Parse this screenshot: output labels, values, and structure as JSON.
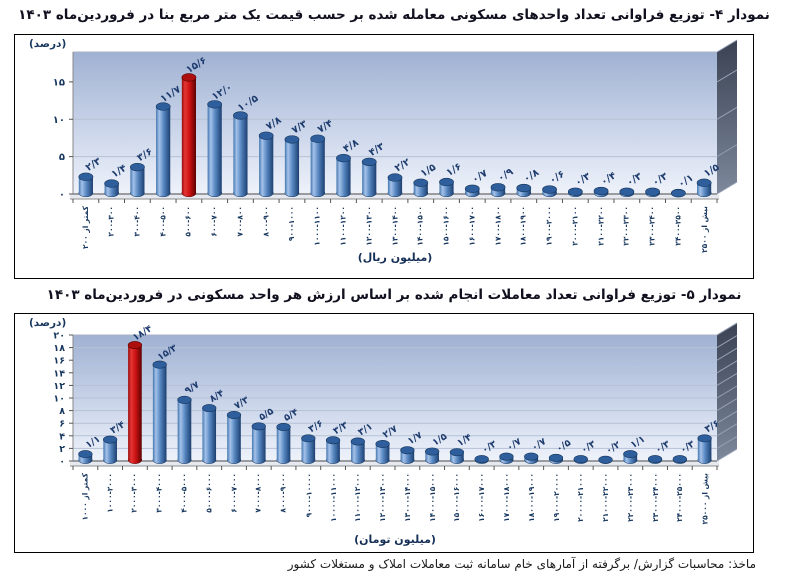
{
  "footer": {
    "source": "ماخذ: محاسبات گزارش/ برگرفته از آمارهای خام سامانه ثبت معاملات املاک و مستغلات کشور"
  },
  "colors": {
    "bar_blue": "#4f81bd",
    "bar_blue_top": "#2e5f9c",
    "highlight_red": "#c00000",
    "highlight_red_top": "#ad0f0f",
    "label_navy": "#17375e",
    "plot_bg_top": "#9fb1d2",
    "plot_bg_bottom": "#eef2fa",
    "side_wall": "#3a4252",
    "gridline": "#b6c1d6"
  },
  "chart_data": [
    {
      "type": "bar",
      "title": "نمودار ۴- توزیع فراوانی تعداد واحدهای مسکونی معامله شده بر حسب قیمت یک متر مربع بنا در فروردین‌ماه ۱۴۰۳",
      "ylabel": "(درصد)",
      "xlabel": "(میلیون ریال)",
      "ylim": [
        0,
        19
      ],
      "grid": true,
      "legend": false,
      "highlight_index": 4,
      "categories": [
        "کمتر از ۲۰۰",
        "۲۰۰-۳۰۰",
        "۳۰۰-۴۰۰",
        "۴۰۰-۵۰۰",
        "۵۰۰-۶۰۰",
        "۶۰۰-۷۰۰",
        "۷۰۰-۸۰۰",
        "۸۰۰-۹۰۰",
        "۹۰۰-۱۰۰۰",
        "۱۰۰۰-۱۱۰۰",
        "۱۱۰۰-۱۲۰۰",
        "۱۲۰۰-۱۳۰۰",
        "۱۳۰۰-۱۴۰۰",
        "۱۴۰۰-۱۵۰۰",
        "۱۵۰۰-۱۶۰۰",
        "۱۶۰۰-۱۷۰۰",
        "۱۷۰۰-۱۸۰۰",
        "۱۸۰۰-۱۹۰۰",
        "۱۹۰۰-۲۰۰۰",
        "۲۰۰۰-۲۱۰۰",
        "۲۱۰۰-۲۲۰۰",
        "۲۲۰۰-۲۳۰۰",
        "۲۳۰۰-۲۴۰۰",
        "۲۴۰۰-۲۵۰۰",
        "بیش از ۲۵۰۰"
      ],
      "values": [
        2.3,
        1.4,
        3.6,
        11.7,
        15.6,
        12.0,
        10.5,
        7.8,
        7.3,
        7.4,
        4.8,
        4.3,
        2.2,
        1.5,
        1.6,
        0.7,
        0.9,
        0.8,
        0.6,
        0.3,
        0.4,
        0.3,
        0.3,
        0.1,
        1.5
      ],
      "value_labels": [
        "۲/۳",
        "۱/۴",
        "۳/۶",
        "۱۱/۷",
        "۱۵/۶",
        "۱۲/۰",
        "۱۰/۵",
        "۷/۸",
        "۷/۳",
        "۷/۴",
        "۴/۸",
        "۴/۳",
        "۲/۲",
        "۱/۵",
        "۱/۶",
        "۰/۷",
        "۰/۹",
        "۰/۸",
        "۰/۶",
        "۰/۳",
        "۰/۴",
        "۰/۳",
        "۰/۳",
        "۰/۱",
        "۱/۵"
      ],
      "yticks": [
        {
          "value": 0,
          "label": "۰"
        },
        {
          "value": 5,
          "label": "۵"
        },
        {
          "value": 10,
          "label": "۱۰"
        },
        {
          "value": 15,
          "label": "۱۵"
        }
      ]
    },
    {
      "type": "bar",
      "title": "نمودار ۵- توزیع فراوانی تعداد معاملات انجام شده بر اساس ارزش هر واحد مسکونی در فروردین‌ماه ۱۴۰۳",
      "ylabel": "(درصد)",
      "xlabel": "(میلیون تومان)",
      "ylim": [
        0,
        20
      ],
      "grid": true,
      "legend": false,
      "highlight_index": 2,
      "categories": [
        "کمتر از ۱۰۰۰",
        "۱۰۰۰-۲۰۰۰",
        "۲۰۰۰-۳۰۰۰",
        "۳۰۰۰-۴۰۰۰",
        "۴۰۰۰-۵۰۰۰",
        "۵۰۰۰-۶۰۰۰",
        "۶۰۰۰-۷۰۰۰",
        "۷۰۰۰-۸۰۰۰",
        "۸۰۰۰-۹۰۰۰",
        "۹۰۰۰-۱۰۰۰۰",
        "۱۰۰۰۰-۱۱۰۰۰",
        "۱۱۰۰۰-۱۲۰۰۰",
        "۱۲۰۰۰-۱۳۰۰۰",
        "۱۳۰۰۰-۱۴۰۰۰",
        "۱۴۰۰۰-۱۵۰۰۰",
        "۱۵۰۰۰-۱۶۰۰۰",
        "۱۶۰۰۰-۱۷۰۰۰",
        "۱۷۰۰۰-۱۸۰۰۰",
        "۱۸۰۰۰-۱۹۰۰۰",
        "۱۹۰۰۰-۲۰۰۰۰",
        "۲۰۰۰۰-۲۱۰۰۰",
        "۲۱۰۰۰-۲۲۰۰۰",
        "۲۲۰۰۰-۲۳۰۰۰",
        "۲۳۰۰۰-۲۴۰۰۰",
        "۲۴۰۰۰-۲۵۰۰۰",
        "بیش از ۲۵۰۰۰"
      ],
      "values": [
        1.1,
        3.4,
        18.4,
        15.3,
        9.7,
        8.4,
        7.3,
        5.5,
        5.4,
        3.6,
        3.3,
        3.1,
        2.7,
        1.7,
        1.5,
        1.4,
        0.3,
        0.7,
        0.7,
        0.5,
        0.3,
        0.2,
        1.1,
        0.3,
        0.3,
        3.6
      ],
      "value_labels": [
        "۱/۱",
        "۳/۴",
        "۱۸/۴",
        "۱۵/۳",
        "۹/۷",
        "۸/۴",
        "۷/۳",
        "۵/۵",
        "۵/۴",
        "۳/۶",
        "۳/۳",
        "۳/۱",
        "۲/۷",
        "۱/۷",
        "۱/۵",
        "۱/۴",
        "۰/۳",
        "۰/۷",
        "۰/۷",
        "۰/۵",
        "۰/۳",
        "۰/۲",
        "۱/۱",
        "۰/۳",
        "۰/۳",
        "۳/۶"
      ],
      "yticks": [
        {
          "value": 0,
          "label": "۰"
        },
        {
          "value": 2,
          "label": "۲"
        },
        {
          "value": 4,
          "label": "۴"
        },
        {
          "value": 6,
          "label": "۶"
        },
        {
          "value": 8,
          "label": "۸"
        },
        {
          "value": 10,
          "label": "۱۰"
        },
        {
          "value": 12,
          "label": "۱۲"
        },
        {
          "value": 14,
          "label": "۱۴"
        },
        {
          "value": 16,
          "label": "۱۶"
        },
        {
          "value": 18,
          "label": "۱۸"
        },
        {
          "value": 20,
          "label": "۲۰"
        }
      ]
    }
  ]
}
